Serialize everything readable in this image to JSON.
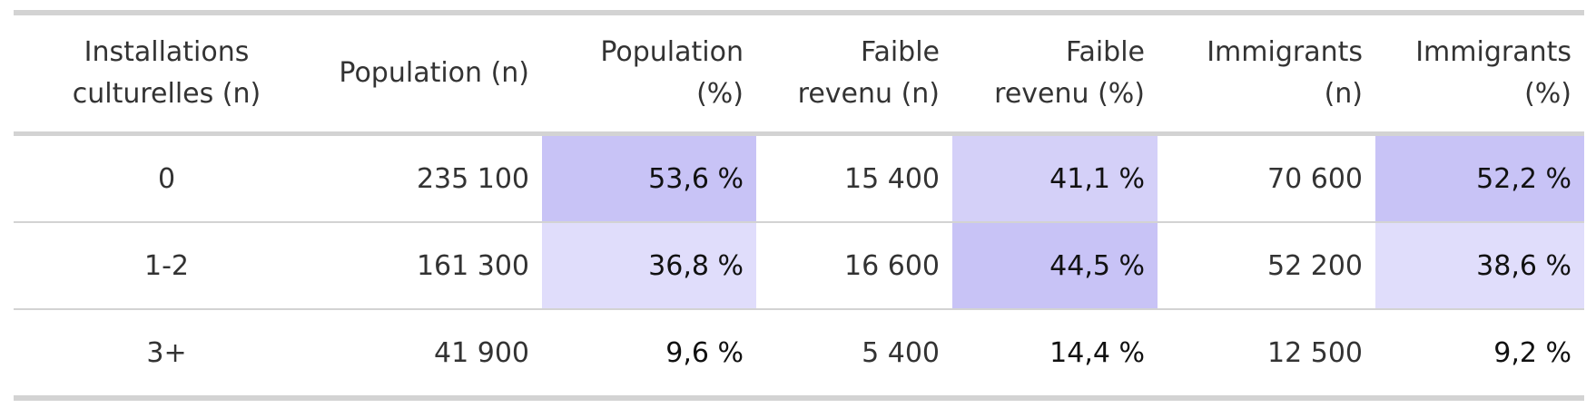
{
  "table": {
    "headers": [
      "Installations culturelles (n)",
      "Population (n)",
      "Population (%)",
      "Faible revenu (n)",
      "Faible revenu (%)",
      "Immigrants (n)",
      "Immigrants (%)"
    ],
    "rows": [
      [
        "0",
        "235 100",
        "53,6 %",
        "15 400",
        "41,1 %",
        "70 600",
        "52,2 %"
      ],
      [
        "1-2",
        "161 300",
        "36,8 %",
        "16 600",
        "44,5 %",
        "52 200",
        "38,6 %"
      ],
      [
        "3+",
        "41 900",
        "9,6 %",
        "5 400",
        "14,4 %",
        "12 500",
        "9,2 %"
      ]
    ],
    "highlight_colors": {
      "strong": "#c8c3f6",
      "medium": "#d4d0f8",
      "light": "#e0ddfb",
      "none": "#ffffff"
    },
    "cell_highlights": [
      [
        "none",
        "none",
        "strong",
        "none",
        "medium",
        "none",
        "strong"
      ],
      [
        "none",
        "none",
        "light",
        "none",
        "strong",
        "none",
        "light"
      ],
      [
        "none",
        "none",
        "none",
        "none",
        "none",
        "none",
        "none"
      ]
    ]
  }
}
